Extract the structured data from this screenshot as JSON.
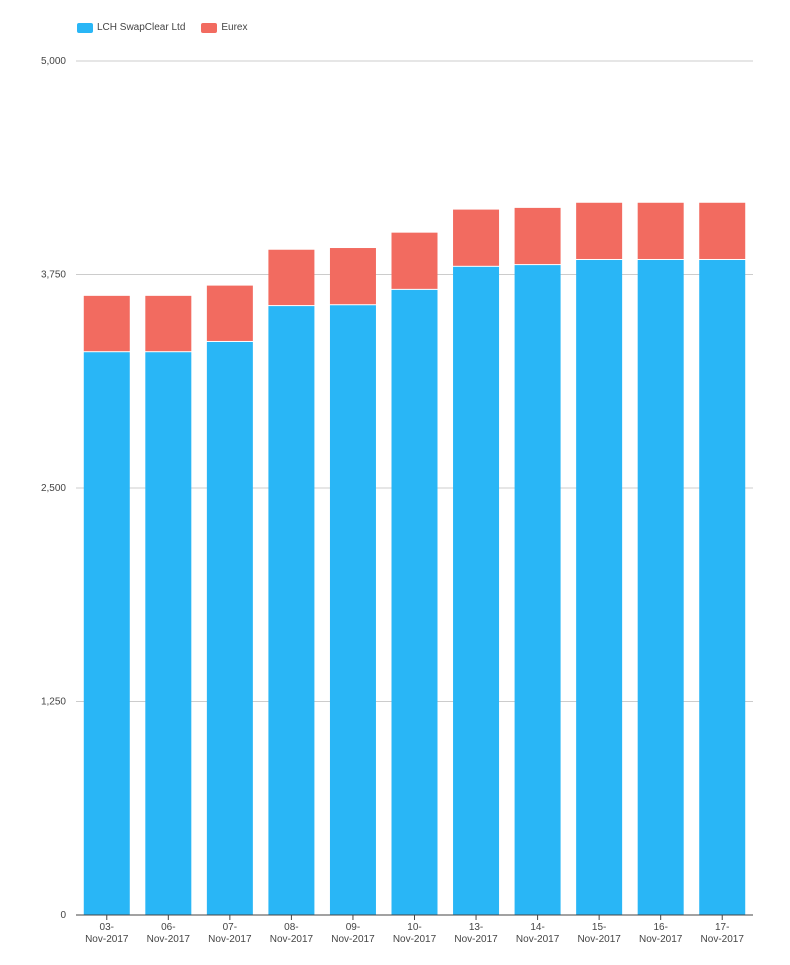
{
  "chart_data": {
    "type": "bar",
    "stacked": true,
    "categories": [
      "03-Nov-2017",
      "06-Nov-2017",
      "07-Nov-2017",
      "08-Nov-2017",
      "09-Nov-2017",
      "10-Nov-2017",
      "13-Nov-2017",
      "14-Nov-2017",
      "15-Nov-2017",
      "16-Nov-2017",
      "17-Nov-2017"
    ],
    "category_lines": [
      [
        "03-",
        "Nov-2017"
      ],
      [
        "06-",
        "Nov-2017"
      ],
      [
        "07-",
        "Nov-2017"
      ],
      [
        "08-",
        "Nov-2017"
      ],
      [
        "09-",
        "Nov-2017"
      ],
      [
        "10-",
        "Nov-2017"
      ],
      [
        "13-",
        "Nov-2017"
      ],
      [
        "14-",
        "Nov-2017"
      ],
      [
        "15-",
        "Nov-2017"
      ],
      [
        "16-",
        "Nov-2017"
      ],
      [
        "17-",
        "Nov-2017"
      ]
    ],
    "series": [
      {
        "name": "LCH SwapClear Ltd",
        "color": "#29B6F6",
        "values": [
          3295,
          3295,
          3355,
          3565,
          3570,
          3660,
          3795,
          3805,
          3835,
          3835,
          3835
        ]
      },
      {
        "name": "Eurex",
        "color": "#F26B60",
        "values": [
          330,
          330,
          330,
          330,
          335,
          335,
          335,
          335,
          335,
          335,
          335
        ]
      }
    ],
    "ylim": [
      0,
      5000
    ],
    "yticks": [
      0,
      1250,
      2500,
      3750,
      5000
    ],
    "ytick_labels": [
      "0",
      "1,250",
      "2,500",
      "3,750",
      "5,000"
    ],
    "grid": true,
    "legend_position": "top-left"
  }
}
